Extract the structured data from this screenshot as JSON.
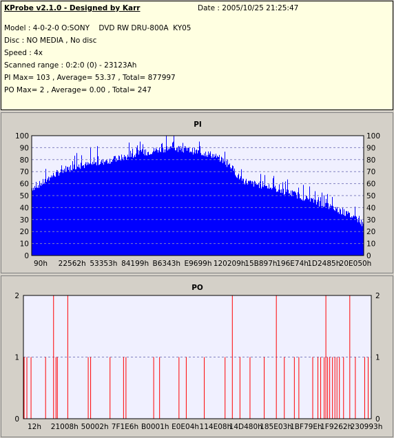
{
  "info": {
    "title": "KProbe v2.1.0 - Designed by Karr",
    "date": "Date : 2005/10/25 21:25:47",
    "model": "Model : 4-0-2-0 O:SONY    DVD RW DRU-800A  KY05",
    "disc": "Disc : NO MEDIA , No disc",
    "speed": "Speed : 4x",
    "range": "Scanned range : 0:2:0 (0) - 23123Ah",
    "pi_stats": "PI Max= 103 , Average= 53.37 , Total= 877997",
    "po_stats": "PO Max= 2 , Average= 0.00 , Total= 247"
  },
  "colors": {
    "pi": "#0000ff",
    "po": "#ff0000",
    "plot_bg": "#f0f0ff",
    "title": "#000080"
  },
  "chart_data": [
    {
      "type": "area",
      "title": "PI",
      "ylim": [
        0,
        100
      ],
      "yticks": [
        0,
        10,
        20,
        30,
        40,
        50,
        60,
        70,
        80,
        90,
        100
      ],
      "xtick_labels": [
        "90h",
        "22562h",
        "53353h",
        "84199h",
        "B6343h",
        "E9699h",
        "120209h",
        "15B897h",
        "196E74h",
        "1D2485h",
        "20E050h"
      ],
      "grid": true,
      "envelope": {
        "x_pct": [
          0,
          3,
          6,
          10,
          13,
          16,
          20,
          25,
          30,
          35,
          38,
          41,
          44,
          47,
          50,
          54,
          57,
          60,
          62,
          64,
          66,
          70,
          75,
          80,
          84,
          88,
          92,
          96,
          98,
          100
        ],
        "avg": [
          56,
          60,
          66,
          72,
          74,
          75,
          77,
          80,
          83,
          86,
          88,
          89,
          89,
          88,
          86,
          84,
          80,
          74,
          66,
          62,
          60,
          58,
          54,
          50,
          46,
          42,
          38,
          33,
          30,
          25
        ],
        "peak": [
          62,
          70,
          78,
          86,
          89,
          90,
          92,
          94,
          96,
          98,
          100,
          101,
          100,
          99,
          98,
          94,
          92,
          86,
          76,
          74,
          72,
          70,
          66,
          62,
          58,
          54,
          50,
          46,
          40,
          32
        ]
      }
    },
    {
      "type": "bar",
      "title": "PO",
      "ylim": [
        0,
        2
      ],
      "yticks": [
        0,
        1,
        2
      ],
      "xtick_labels": [
        "12h",
        "21008h",
        "50002h",
        "7F1E6h",
        "B0001h",
        "E0E04h",
        "114E08h",
        "14D480h",
        "185E03h",
        "1BF79Eh",
        "1F9262h",
        "230993h"
      ],
      "grid": true,
      "spikes_x_pct": [
        0,
        0.8,
        2.0,
        6.2,
        8.5,
        9.2,
        9.6,
        12.6,
        18.5,
        19.2,
        24.8,
        28.7,
        29.4,
        37.4,
        39.1,
        44.7,
        46.8,
        52.0,
        58.0,
        60.1,
        62.3,
        65.2,
        69.3,
        72.8,
        75.1,
        78.0,
        79.3,
        83.3,
        84.8,
        85.6,
        86.6,
        87.1,
        87.6,
        88.2,
        89.0,
        89.7,
        90.3,
        91.0,
        92.2,
        94.0,
        95.6,
        98.3,
        99.3
      ],
      "spikes_val": [
        1,
        1,
        1,
        1,
        2,
        1,
        1,
        2,
        1,
        1,
        1,
        1,
        1,
        1,
        1,
        1,
        1,
        1,
        1,
        2,
        1,
        1,
        1,
        2,
        1,
        1,
        1,
        1,
        1,
        1,
        1,
        2,
        1,
        1,
        1,
        1,
        1,
        1,
        1,
        2,
        1,
        1,
        1
      ]
    }
  ]
}
